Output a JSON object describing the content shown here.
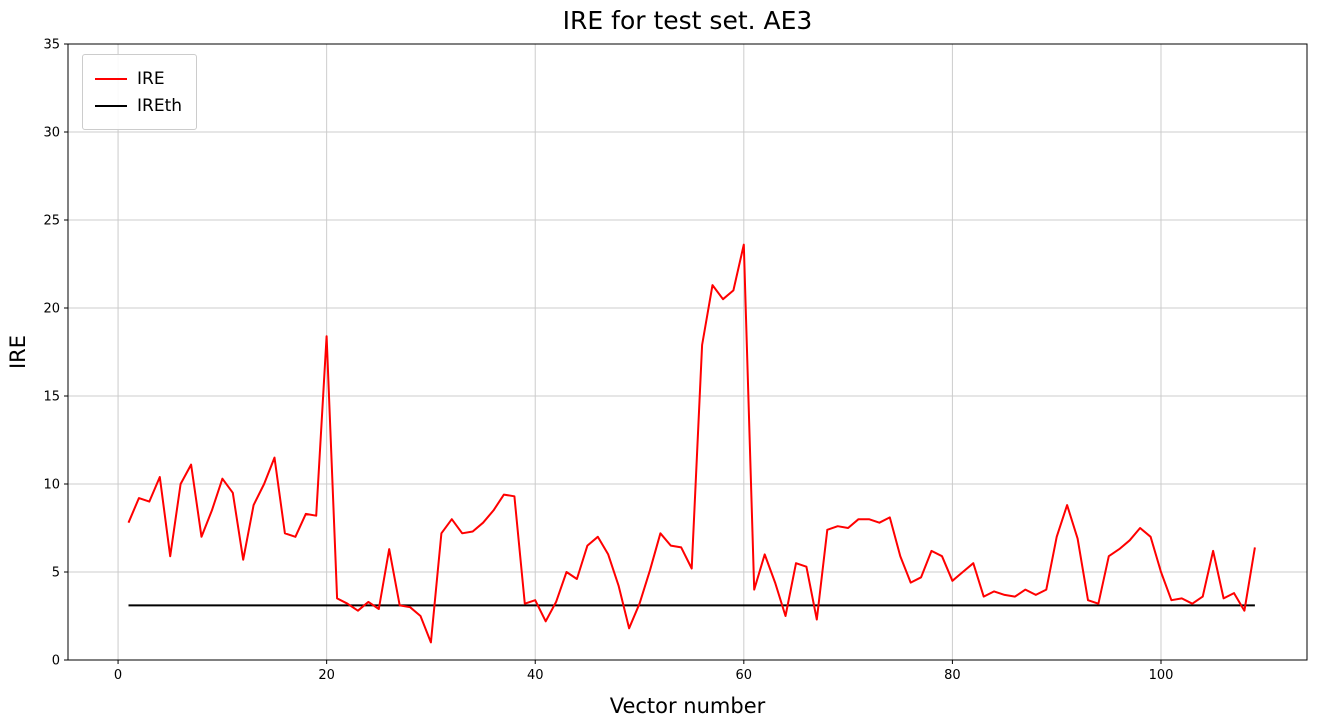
{
  "figure": {
    "background": "#ffffff"
  },
  "chart_data": {
    "type": "line",
    "title": "IRE for test set. AE3",
    "xlabel": "Vector number",
    "ylabel": "IRE",
    "xlim": [
      -4.8,
      114.0
    ],
    "ylim": [
      0,
      35
    ],
    "x_ticks": [
      0,
      20,
      40,
      60,
      80,
      100
    ],
    "y_ticks": [
      0,
      5,
      10,
      15,
      20,
      25,
      30,
      35
    ],
    "grid": true,
    "grid_color": "#cccccc",
    "axes_edge_color": "#000000",
    "legend_position": "upper-left",
    "x_start": 1,
    "series": [
      {
        "name": "IRE",
        "color": "#ff0000",
        "values": [
          7.8,
          9.2,
          9.0,
          10.4,
          5.9,
          10.0,
          11.1,
          7.0,
          8.5,
          10.3,
          9.5,
          5.7,
          8.8,
          10.0,
          11.5,
          7.2,
          7.0,
          8.3,
          8.2,
          18.4,
          3.5,
          3.2,
          2.8,
          3.3,
          2.9,
          6.3,
          3.1,
          3.0,
          2.5,
          1.0,
          7.2,
          8.0,
          7.2,
          7.3,
          7.8,
          8.5,
          9.4,
          9.3,
          3.2,
          3.4,
          2.2,
          3.3,
          5.0,
          4.6,
          6.5,
          7.0,
          6.0,
          4.2,
          1.8,
          3.2,
          5.1,
          7.2,
          6.5,
          6.4,
          5.2,
          17.9,
          21.3,
          20.5,
          21.0,
          23.6,
          4.0,
          6.0,
          4.4,
          2.5,
          5.5,
          5.3,
          2.3,
          7.4,
          7.6,
          7.5,
          8.0,
          8.0,
          7.8,
          8.1,
          5.9,
          4.4,
          4.7,
          6.2,
          5.9,
          4.5,
          5.0,
          5.5,
          3.6,
          3.9,
          3.7,
          3.6,
          4.0,
          3.7,
          4.0,
          7.0,
          8.8,
          6.9,
          3.4,
          3.2,
          5.9,
          6.3,
          6.8,
          7.5,
          7.0,
          5.0,
          3.4,
          3.5,
          3.2,
          3.6,
          6.2,
          3.5,
          3.8,
          2.8,
          6.4
        ]
      },
      {
        "name": "IREth",
        "color": "#000000",
        "constant": 3.1,
        "x_range": [
          1,
          109
        ]
      }
    ]
  }
}
